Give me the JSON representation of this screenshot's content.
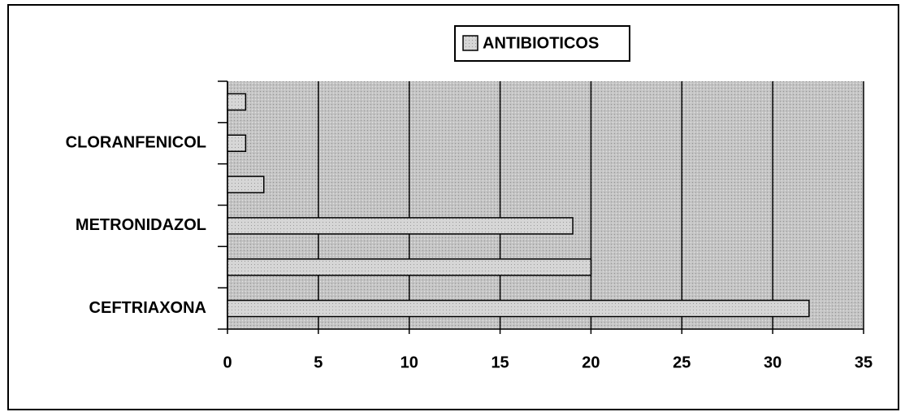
{
  "chart_data": {
    "type": "barh",
    "categories": [
      "CEFTRIAXONA",
      null,
      "METRONIDAZOL",
      null,
      "CLORANFENICOL",
      null
    ],
    "series": [
      {
        "name": "ANTIBIOTICOS",
        "color": "#d9d9d9",
        "values": [
          32,
          20,
          19,
          2,
          1,
          1
        ]
      }
    ],
    "xlim": [
      0,
      35
    ],
    "xticks": [
      0,
      5,
      10,
      15,
      20,
      25,
      30,
      35
    ],
    "grid": true,
    "legend": "top"
  }
}
